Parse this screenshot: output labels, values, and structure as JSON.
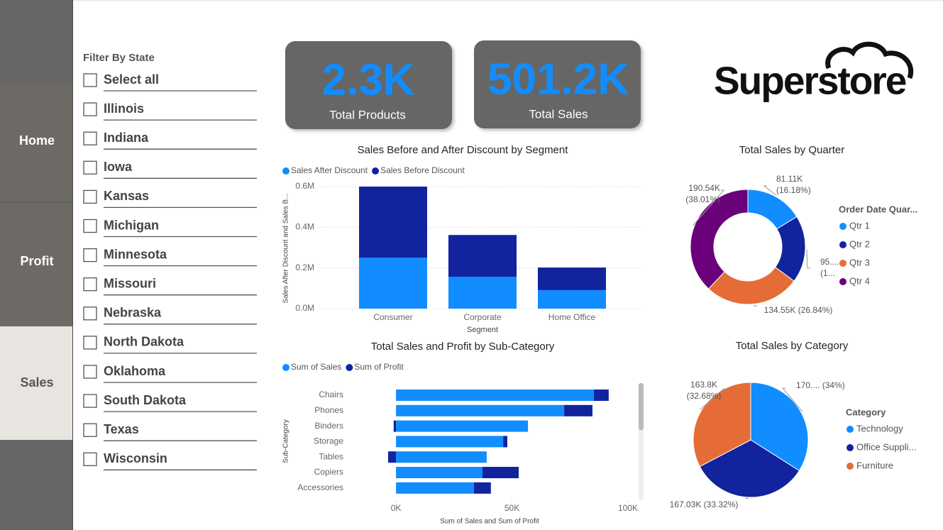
{
  "nav": {
    "items": [
      "Home",
      "Profit",
      "Sales"
    ]
  },
  "filter": {
    "title": "Filter By State",
    "options": [
      "Select all",
      "Illinois",
      "Indiana",
      "Iowa",
      "Kansas",
      "Michigan",
      "Minnesota",
      "Missouri",
      "Nebraska",
      "North Dakota",
      "Oklahoma",
      "South Dakota",
      "Texas",
      "Wisconsin"
    ]
  },
  "kpis": [
    {
      "value": "2.3K",
      "label": "Total Products"
    },
    {
      "value": "501.2K",
      "label": "Total Sales"
    }
  ],
  "logo": "Superstore",
  "chart_data": [
    {
      "type": "stacked_bar",
      "title": "Sales Before and After Discount by Segment",
      "x_label": "Segment",
      "y_label": "Sales After Discount and Sales B...",
      "categories": [
        "Consumer",
        "Corporate",
        "Home Office"
      ],
      "series": [
        {
          "name": "Sales After Discount",
          "color": "#118dff",
          "values": [
            251000,
            157000,
            91000
          ]
        },
        {
          "name": "Sales Before Discount",
          "color": "#12239e",
          "values": [
            349000,
            205000,
            111000
          ]
        }
      ],
      "ylim": [
        0,
        600000
      ],
      "yticks": [
        {
          "value": 0,
          "label": "0.0M"
        },
        {
          "value": 200000,
          "label": "0.2M"
        },
        {
          "value": 400000,
          "label": "0.4M"
        },
        {
          "value": 600000,
          "label": "0.6M"
        }
      ],
      "grid": true,
      "legend": "top-left"
    },
    {
      "type": "stacked_hbar",
      "title": "Total Sales and Profit by Sub-Category",
      "x_label": "Sum of Sales and Sum of Profit",
      "y_label": "Sub-Category",
      "categories": [
        "Chairs",
        "Phones",
        "Binders",
        "Storage",
        "Tables",
        "Copiers",
        "Accessories"
      ],
      "series": [
        {
          "name": "Sum of Sales",
          "color": "#118dff",
          "values": [
            85300,
            72500,
            56900,
            46200,
            39100,
            37300,
            33600
          ]
        },
        {
          "name": "Sum of Profit",
          "color": "#12239e",
          "values": [
            6400,
            12200,
            -1000,
            1800,
            -3400,
            15600,
            7300
          ]
        }
      ],
      "xlim": [
        -4000,
        100000
      ],
      "xticks": [
        {
          "value": 0,
          "label": "0K"
        },
        {
          "value": 50000,
          "label": "50K"
        },
        {
          "value": 100000,
          "label": "100K"
        }
      ],
      "legend": "top-left"
    },
    {
      "type": "donut",
      "title": "Total Sales by Quarter",
      "legend_title": "Order Date Quar...",
      "categories": [
        "Qtr 1",
        "Qtr 2",
        "Qtr 3",
        "Qtr 4"
      ],
      "colors": [
        "#118dff",
        "#12239e",
        "#e66c37",
        "#6b007b"
      ],
      "values": [
        81.11,
        95.0,
        134.55,
        190.54
      ],
      "value_labels": [
        [
          "81.11K",
          "(16.18%)"
        ],
        [
          "95....",
          "(1..."
        ],
        [
          "134.55K (26.84%)"
        ],
        [
          "190.54K",
          "(38.01%)"
        ]
      ],
      "legend": "right"
    },
    {
      "type": "pie",
      "title": "Total Sales by Category",
      "legend_title": "Category",
      "categories": [
        "Technology",
        "Office Suppli...",
        "Furniture"
      ],
      "colors": [
        "#118dff",
        "#12239e",
        "#e66c37"
      ],
      "values": [
        170.37,
        167.03,
        163.8
      ],
      "value_labels": [
        [
          "170.... (34%)"
        ],
        [
          "167.03K (33.32%)"
        ],
        [
          "163.8K",
          "(32.68%)"
        ]
      ],
      "legend": "right"
    }
  ]
}
